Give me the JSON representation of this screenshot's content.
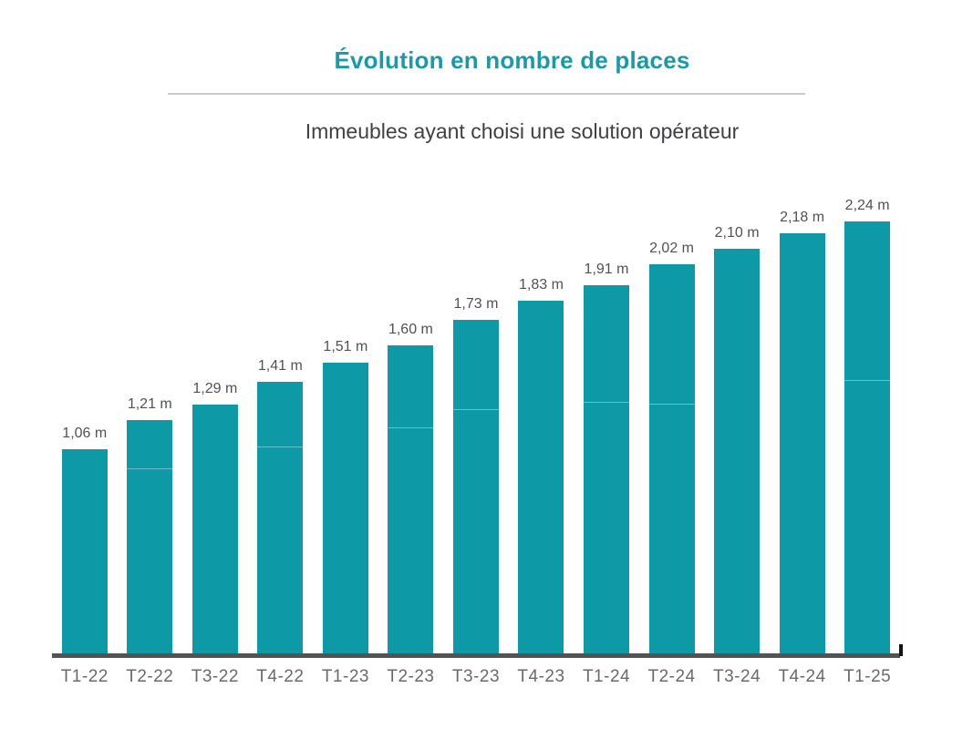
{
  "colors": {
    "title_accent": "#1b9aa6",
    "bar_teal": "#0d9aa6",
    "axis_line": "#515357",
    "axis_end_tick": "#141414",
    "title_rule": "#c9cacb",
    "value_label_text": "#525255",
    "x_axis_label_text": "#696a6e",
    "subtitle_text": "#404145"
  },
  "chart_data": {
    "type": "bar",
    "title": "Évolution en nombre de places",
    "subtitle": "Immeubles ayant choisi une solution opérateur",
    "categories": [
      "T1-22",
      "T2-22",
      "T3-22",
      "T4-22",
      "T1-23",
      "T2-23",
      "T3-23",
      "T4-23",
      "T1-24",
      "T2-24",
      "T3-24",
      "T4-24",
      "T1-25"
    ],
    "values": [
      1.06,
      1.21,
      1.29,
      1.41,
      1.51,
      1.6,
      1.73,
      1.83,
      1.91,
      2.02,
      2.1,
      2.18,
      2.24
    ],
    "value_labels": [
      "1,06 m",
      "1,21 m",
      "1,29 m",
      "1,41 m",
      "1,51 m",
      "1,60 m",
      "1,73 m",
      "1,83 m",
      "1,91 m",
      "2,02 m",
      "2,10 m",
      "2,18 m",
      "2,24 m"
    ],
    "unit": "m",
    "xlabel": "",
    "ylabel": "",
    "ylim": [
      0,
      2.54
    ],
    "grid": false,
    "legend": null,
    "bar_color": "#0d9aa6",
    "segment_divider_frac": [
      null,
      0.79,
      null,
      0.76,
      null,
      0.73,
      0.73,
      null,
      0.68,
      0.64,
      null,
      null,
      0.63
    ]
  }
}
